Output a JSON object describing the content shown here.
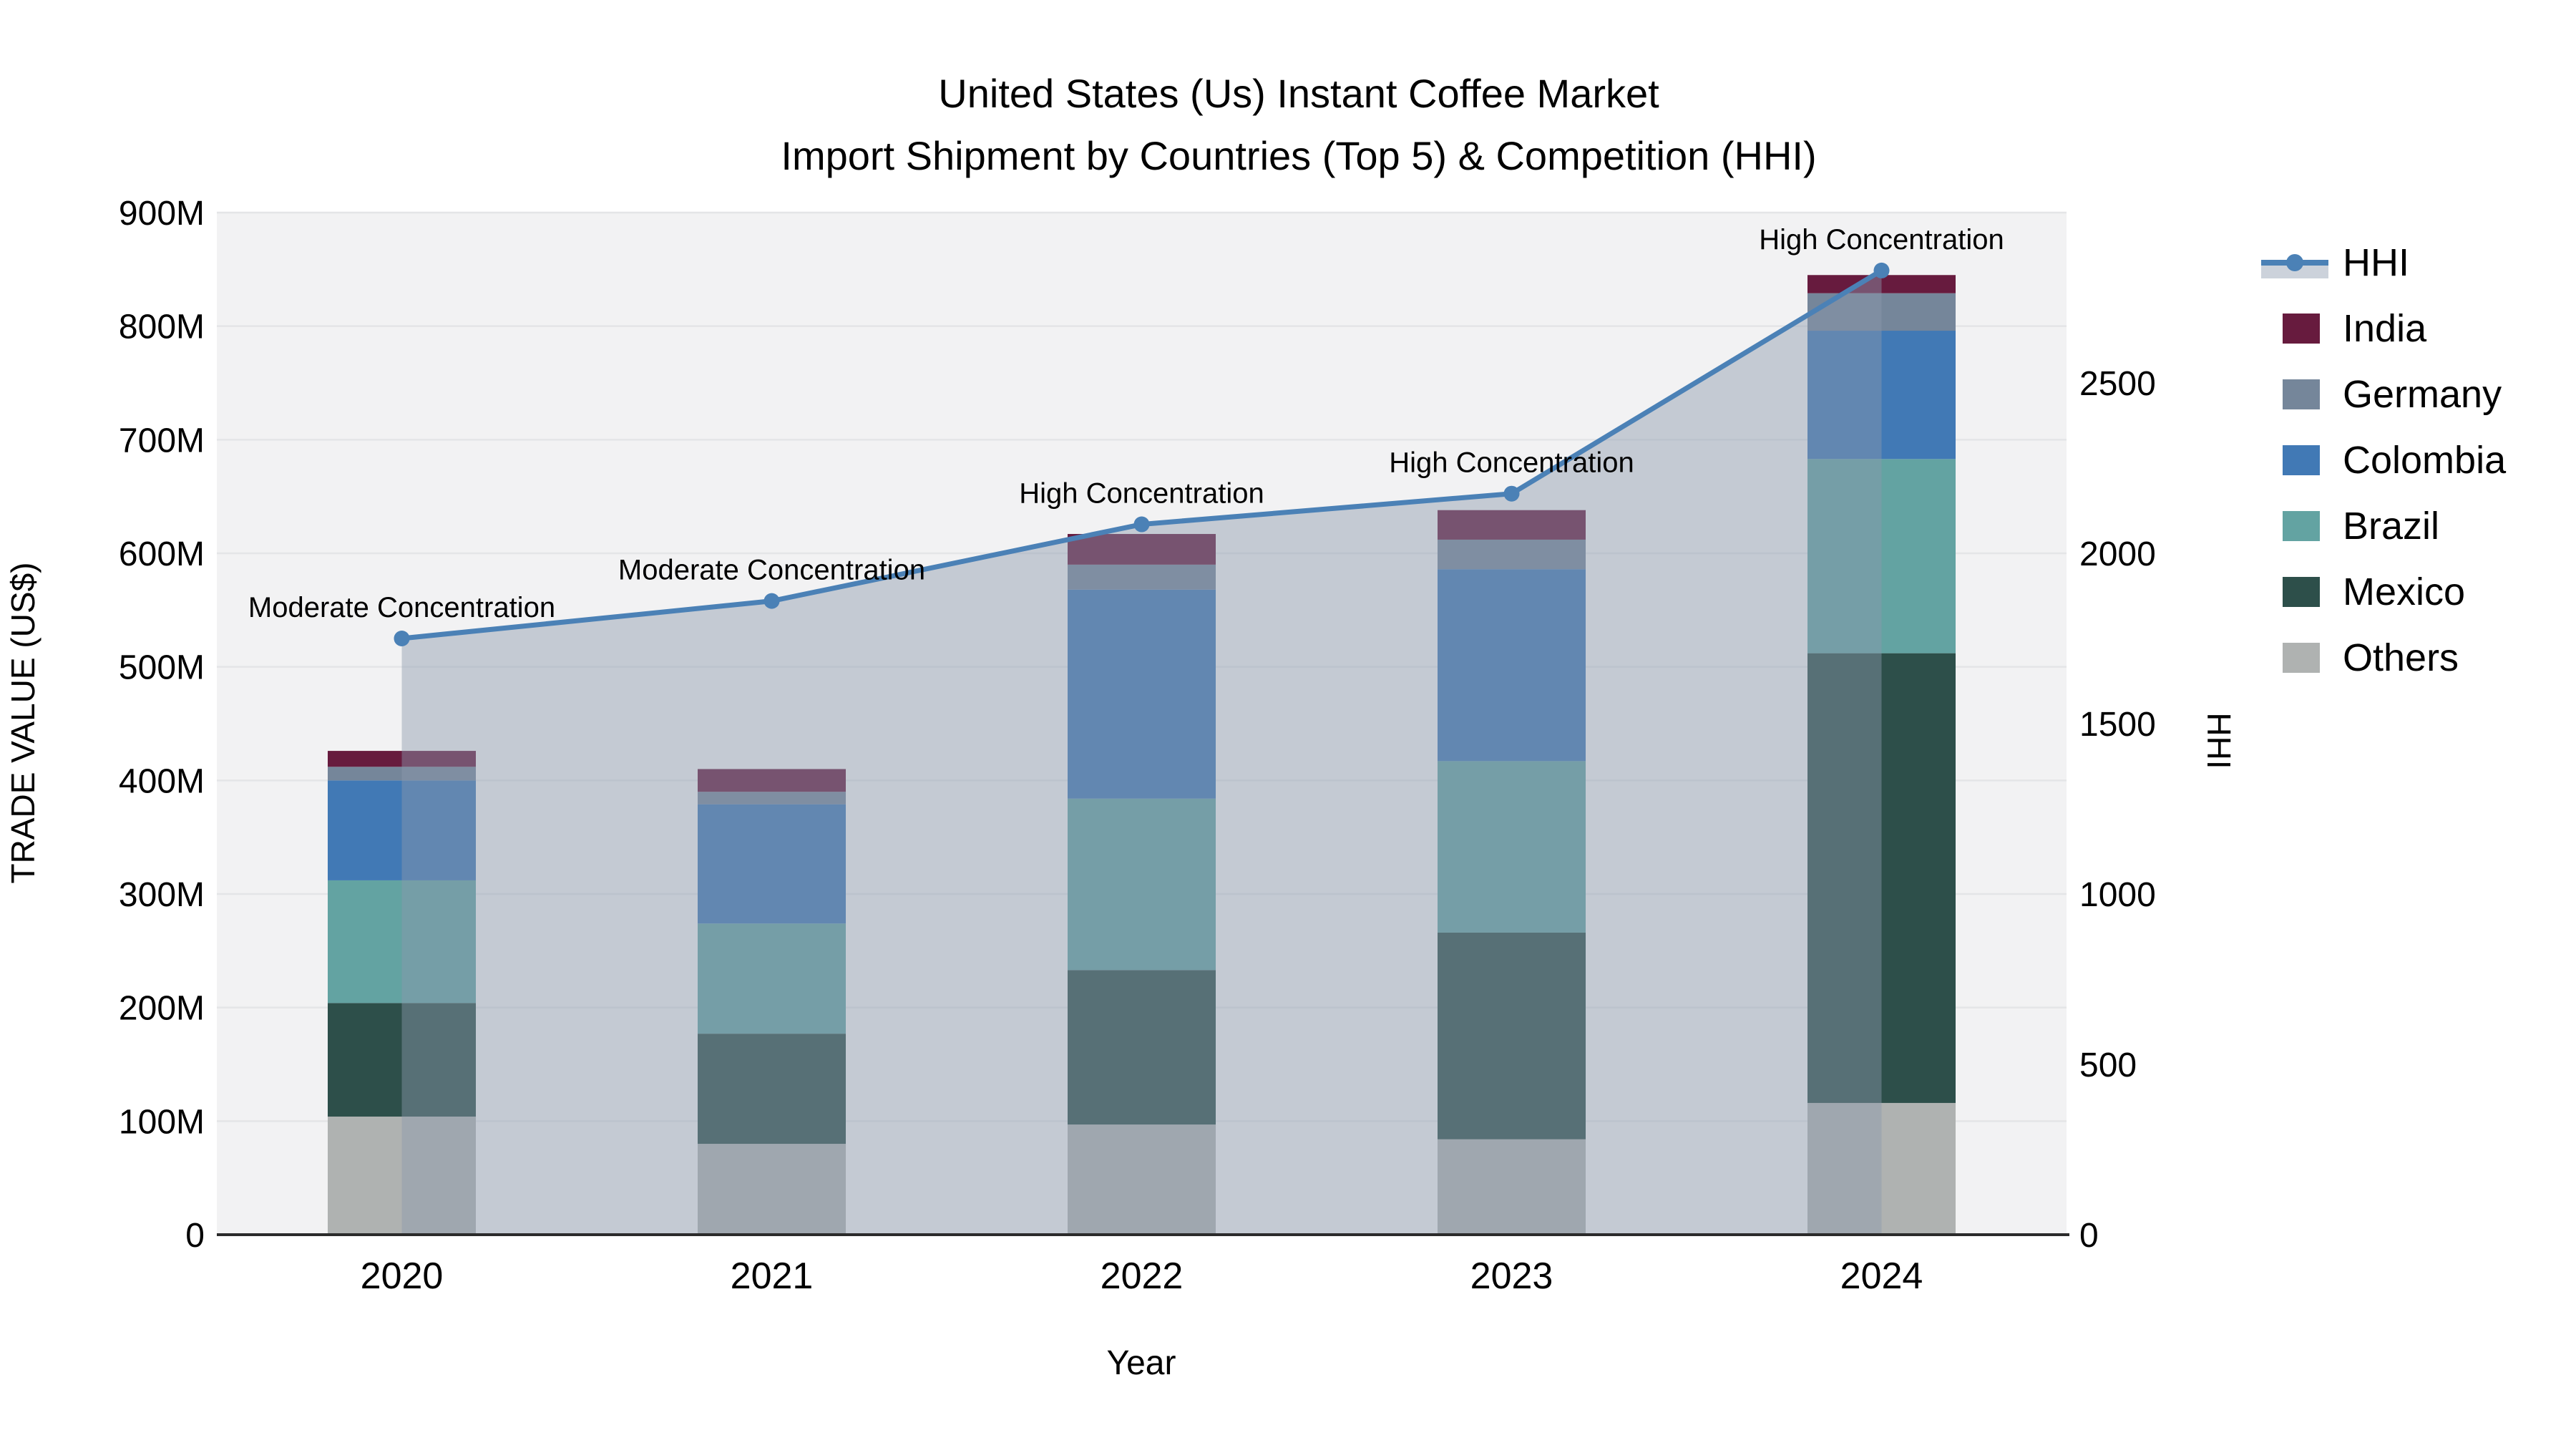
{
  "title": {
    "line1": "United States (Us) Instant Coffee Market",
    "line2": "Import Shipment by Countries (Top 5) & Competition (HHI)"
  },
  "axes": {
    "y_left": {
      "label": "TRADE VALUE (US$)",
      "ticks": [
        "0",
        "100M",
        "200M",
        "300M",
        "400M",
        "500M",
        "600M",
        "700M",
        "800M",
        "900M"
      ],
      "tick_values": [
        0,
        100,
        200,
        300,
        400,
        500,
        600,
        700,
        800,
        900
      ],
      "max": 900
    },
    "y_right": {
      "label": "HHI",
      "ticks": [
        "0",
        "500",
        "1000",
        "1500",
        "2000",
        "2500"
      ],
      "tick_values": [
        0,
        500,
        1000,
        1500,
        2000,
        2500
      ],
      "max": 3000
    },
    "x": {
      "label": "Year",
      "ticks": [
        "2020",
        "2021",
        "2022",
        "2023",
        "2024"
      ]
    }
  },
  "legend": {
    "items": [
      {
        "label": "HHI",
        "type": "line"
      },
      {
        "label": "India",
        "type": "swatch",
        "color": "#671b3e"
      },
      {
        "label": "Germany",
        "type": "swatch",
        "color": "#75869a"
      },
      {
        "label": "Colombia",
        "type": "swatch",
        "color": "#4179b5"
      },
      {
        "label": "Brazil",
        "type": "swatch",
        "color": "#63a3a2"
      },
      {
        "label": "Mexico",
        "type": "swatch",
        "color": "#2d4f4a"
      },
      {
        "label": "Others",
        "type": "swatch",
        "color": "#afb2b1"
      }
    ]
  },
  "chart_data": {
    "type": "bar",
    "subtype": "stacked-bars-with-line-overlay",
    "title": "United States (Us) Instant Coffee Market — Import Shipment by Countries (Top 5) & Competition (HHI)",
    "xlabel": "Year",
    "ylabel": "TRADE VALUE (US$)",
    "y2label": "HHI",
    "ylim": [
      0,
      900
    ],
    "y2lim": [
      0,
      3000
    ],
    "units": "millions US$",
    "grid": true,
    "legend_position": "right",
    "categories": [
      "2020",
      "2021",
      "2022",
      "2023",
      "2024"
    ],
    "series": [
      {
        "name": "Others",
        "color": "#afb2b1",
        "values": [
          104,
          80,
          97,
          84,
          116
        ]
      },
      {
        "name": "Mexico",
        "color": "#2d4f4a",
        "values": [
          100,
          97,
          136,
          182,
          396
        ]
      },
      {
        "name": "Brazil",
        "color": "#63a3a2",
        "values": [
          108,
          97,
          151,
          151,
          171
        ]
      },
      {
        "name": "Colombia",
        "color": "#4179b5",
        "values": [
          88,
          105,
          184,
          169,
          113
        ]
      },
      {
        "name": "Germany",
        "color": "#75869a",
        "values": [
          12,
          11,
          22,
          26,
          33
        ]
      },
      {
        "name": "India",
        "color": "#671b3e",
        "values": [
          14,
          20,
          27,
          26,
          16
        ]
      }
    ],
    "totals": [
      426,
      410,
      617,
      638,
      845
    ],
    "hhi": {
      "name": "HHI",
      "values": [
        1750,
        1860,
        2085,
        2175,
        2830
      ],
      "axis": "right"
    },
    "annotations": [
      {
        "x": "2020",
        "label": "Moderate Concentration"
      },
      {
        "x": "2021",
        "label": "Moderate Concentration"
      },
      {
        "x": "2022",
        "label": "High Concentration"
      },
      {
        "x": "2023",
        "label": "High Concentration"
      },
      {
        "x": "2024",
        "label": "High Concentration"
      }
    ]
  },
  "colors": {
    "hhi_line": "#4b81b6",
    "area_fill_rgba": "139,152,173,0.45",
    "legend_area_band": "#ccd2db",
    "plot_bg": "#f2f2f3",
    "grid": "#e4e5e7",
    "axis_line": "#2b2b2b",
    "text": "#000000"
  }
}
